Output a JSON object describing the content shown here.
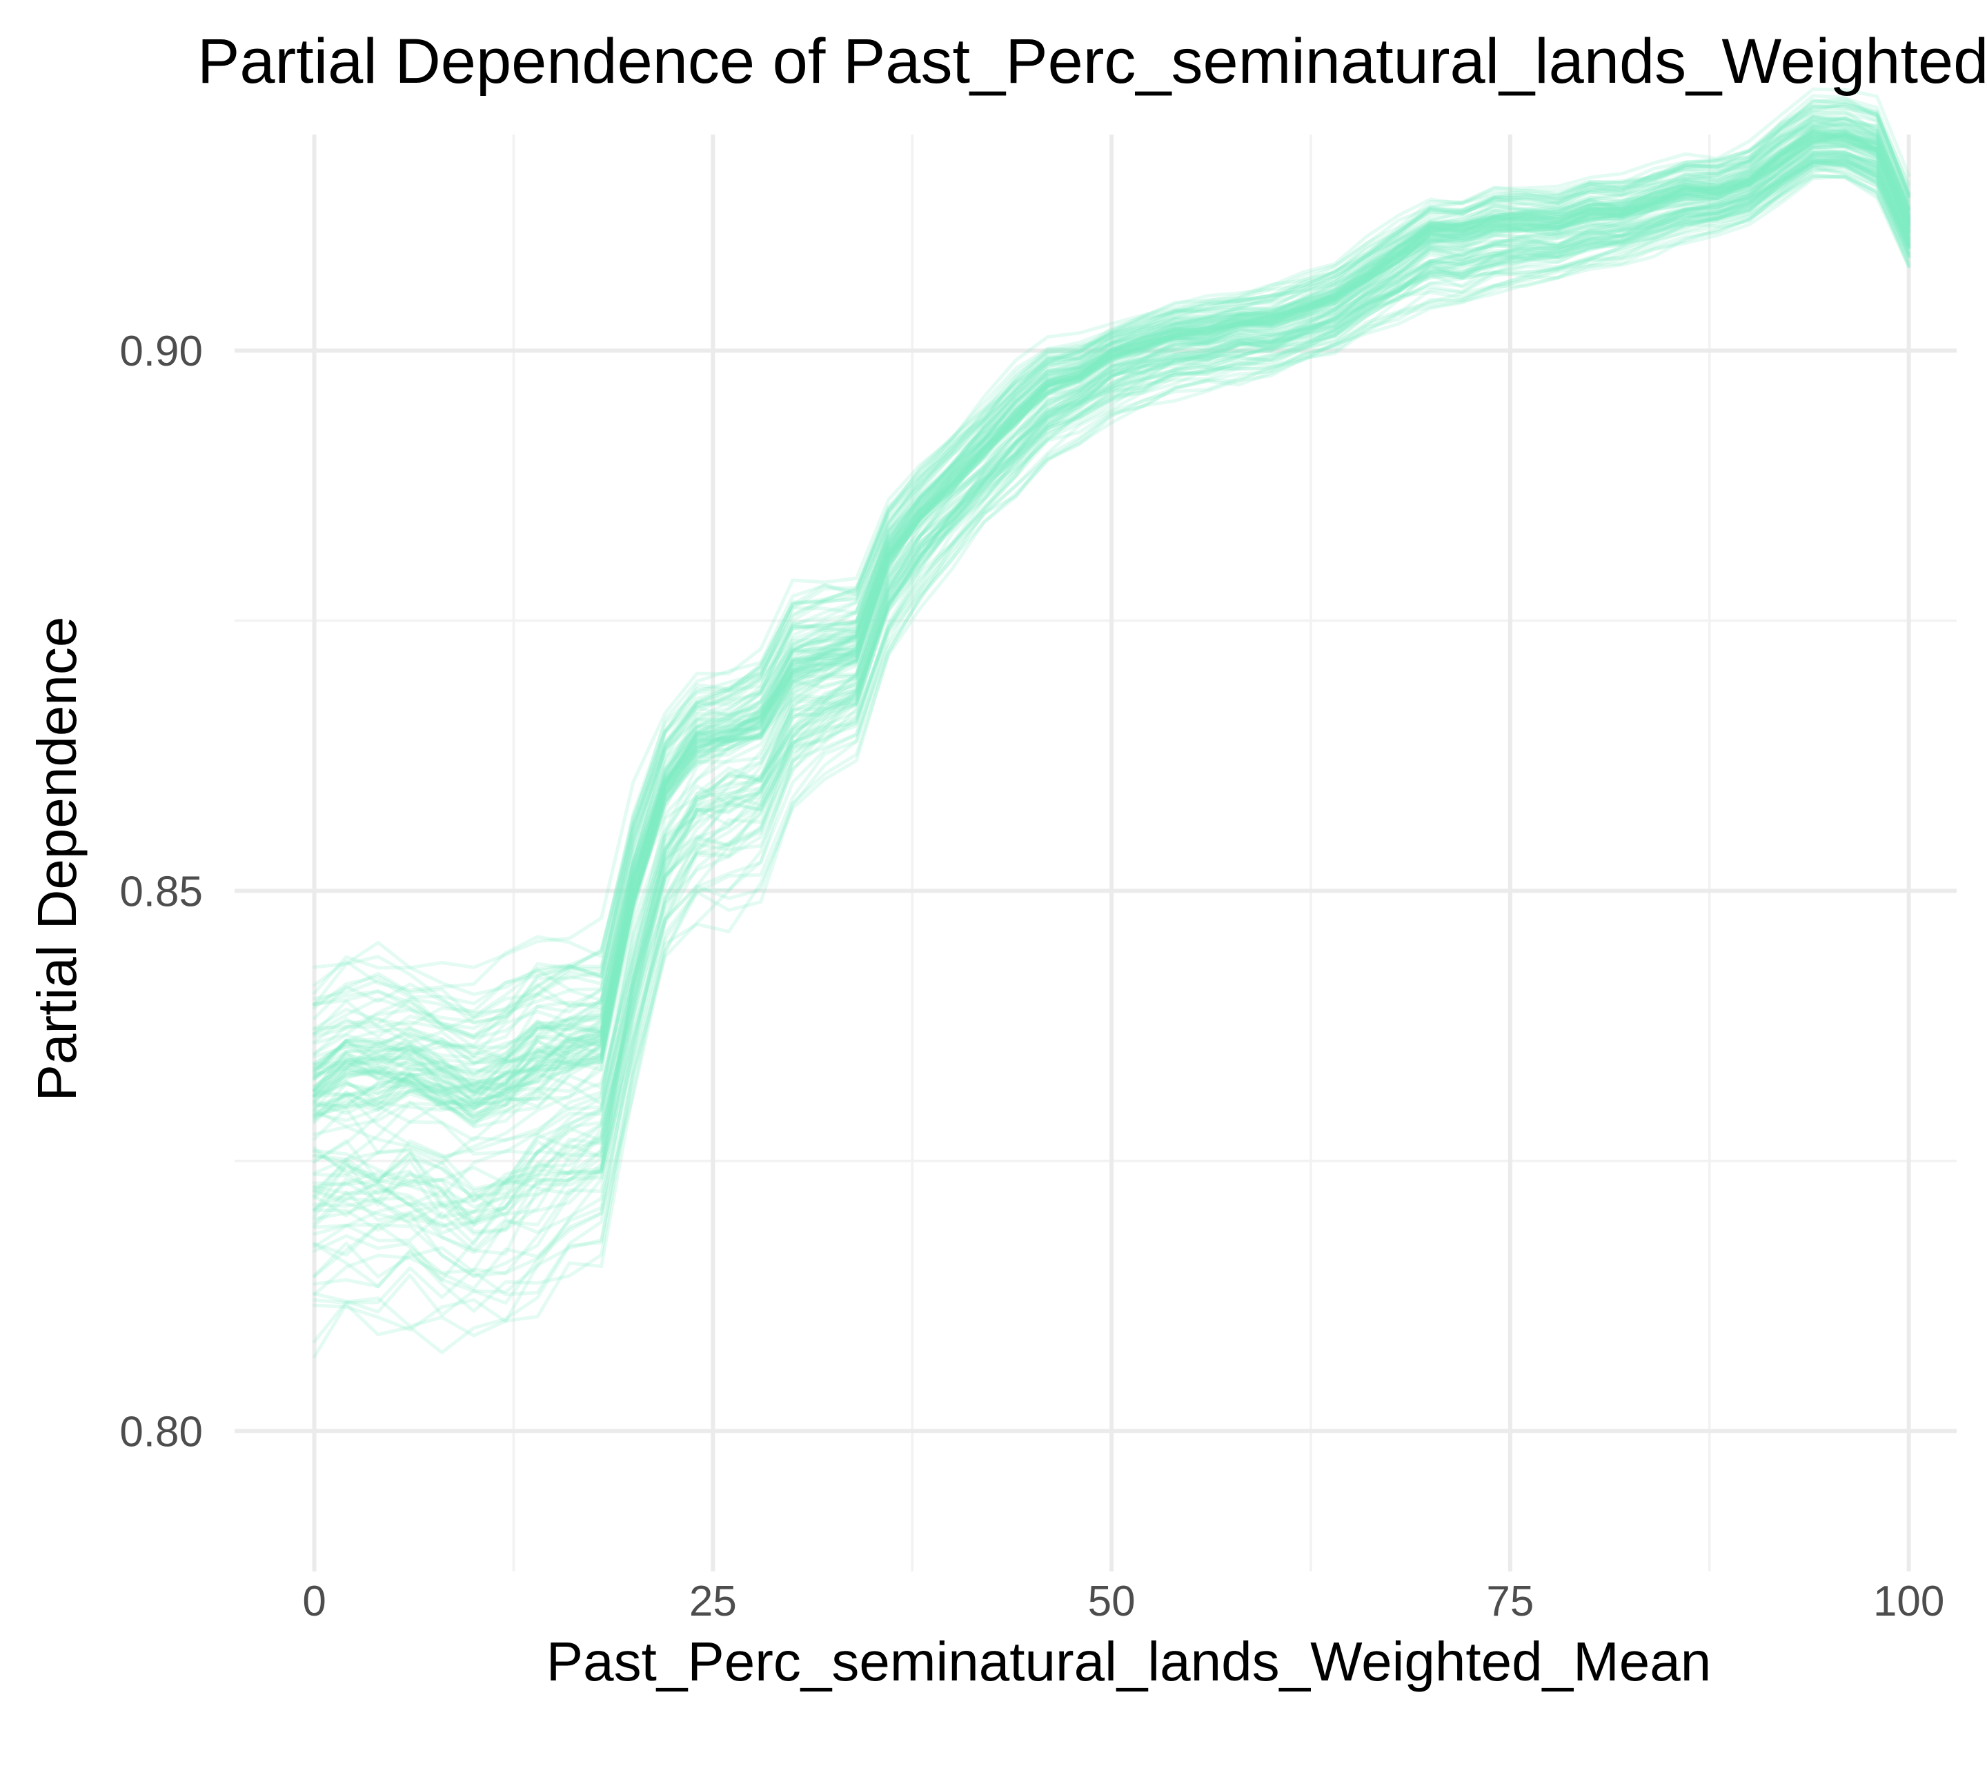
{
  "chart_data": {
    "type": "line",
    "title": "Partial Dependence of Past_Perc_seminatural_lands_Weighted_Mean",
    "xlabel": "Past_Perc_seminatural_lands_Weighted_Mean",
    "ylabel": "Partial Dependence",
    "xlim": [
      -5,
      103
    ],
    "ylim": [
      0.787,
      0.92
    ],
    "x_ticks": [
      0,
      25,
      50,
      75,
      100
    ],
    "x_tick_labels": [
      "0",
      "25",
      "50",
      "75",
      "100"
    ],
    "x_minor_ticks": [
      12.5,
      37.5,
      62.5,
      87.5
    ],
    "y_ticks": [
      0.8,
      0.85,
      0.9
    ],
    "y_tick_labels": [
      "0.80",
      "0.85",
      "0.90"
    ],
    "y_minor_ticks": [
      0.825,
      0.875,
      0.925
    ],
    "grid": true,
    "legend": "none",
    "line_color": "#7eefc4",
    "line_opacity": 0.22,
    "line_count": 120,
    "x": [
      0,
      2,
      4,
      6,
      8,
      10,
      12,
      14,
      16,
      18,
      20,
      22,
      24,
      26,
      28,
      30,
      32,
      34,
      36,
      38,
      40,
      42,
      44,
      46,
      48,
      50,
      52,
      54,
      56,
      58,
      60,
      62,
      64,
      66,
      68,
      70,
      72,
      74,
      76,
      78,
      80,
      82,
      84,
      86,
      88,
      90,
      92,
      94,
      96,
      98,
      100
    ],
    "average_curve": [
      0.829,
      0.83,
      0.83,
      0.831,
      0.83,
      0.829,
      0.83,
      0.832,
      0.833,
      0.834,
      0.848,
      0.858,
      0.862,
      0.863,
      0.864,
      0.869,
      0.87,
      0.871,
      0.88,
      0.884,
      0.887,
      0.89,
      0.893,
      0.896,
      0.897,
      0.899,
      0.9,
      0.901,
      0.901,
      0.902,
      0.902,
      0.903,
      0.904,
      0.906,
      0.908,
      0.91,
      0.91,
      0.911,
      0.911,
      0.911,
      0.912,
      0.912,
      0.913,
      0.914,
      0.914,
      0.915,
      0.917,
      0.919,
      0.919,
      0.918,
      0.911
    ],
    "range_low": [
      0.796,
      0.798,
      0.798,
      0.798,
      0.797,
      0.797,
      0.798,
      0.8,
      0.803,
      0.806,
      0.82,
      0.833,
      0.838,
      0.839,
      0.842,
      0.852,
      0.856,
      0.859,
      0.868,
      0.873,
      0.877,
      0.881,
      0.883,
      0.887,
      0.889,
      0.891,
      0.892,
      0.893,
      0.894,
      0.894,
      0.895,
      0.896,
      0.897,
      0.899,
      0.9,
      0.901,
      0.901,
      0.902,
      0.903,
      0.904,
      0.905,
      0.906,
      0.907,
      0.908,
      0.909,
      0.91,
      0.912,
      0.914,
      0.914,
      0.912,
      0.906
    ],
    "range_high": [
      0.848,
      0.851,
      0.851,
      0.85,
      0.849,
      0.848,
      0.85,
      0.853,
      0.852,
      0.852,
      0.864,
      0.871,
      0.874,
      0.874,
      0.876,
      0.882,
      0.883,
      0.883,
      0.889,
      0.892,
      0.895,
      0.898,
      0.901,
      0.903,
      0.903,
      0.904,
      0.905,
      0.906,
      0.907,
      0.907,
      0.908,
      0.909,
      0.91,
      0.912,
      0.914,
      0.916,
      0.916,
      0.917,
      0.917,
      0.917,
      0.918,
      0.918,
      0.919,
      0.92,
      0.92,
      0.921,
      0.924,
      0.926,
      0.926,
      0.925,
      0.918
    ]
  }
}
